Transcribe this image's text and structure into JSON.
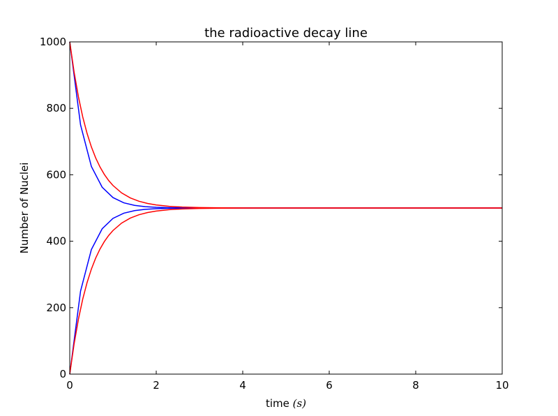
{
  "chart_data": {
    "type": "line",
    "title": "the radioactive decay line",
    "xlabel_prefix": "time ",
    "xlabel_math": "(s)",
    "ylabel": "Number of Nuclei",
    "xlim": [
      0,
      10
    ],
    "ylim": [
      0,
      1000
    ],
    "x_ticks": [
      0,
      2,
      4,
      6,
      8,
      10
    ],
    "y_ticks": [
      0,
      200,
      400,
      600,
      800,
      1000
    ],
    "grid": false,
    "legend": "none",
    "series": [
      {
        "color": "#0000ff",
        "x": [
          0,
          0.25,
          0.5,
          0.75,
          1.0,
          1.25,
          1.5,
          1.75,
          2.0,
          2.25,
          2.5,
          2.75,
          3.0,
          3.25,
          3.5,
          3.75,
          4.0,
          5.0,
          6.0,
          7.0,
          8.0,
          9.0,
          10.0
        ],
        "y": [
          1000,
          750,
          625,
          562.5,
          531.3,
          515.6,
          507.8,
          503.9,
          502.0,
          501.0,
          500.5,
          500.2,
          500.1,
          500.1,
          500,
          500,
          500,
          500,
          500,
          500,
          500,
          500,
          500
        ]
      },
      {
        "color": "#0000ff",
        "x": [
          0,
          0.25,
          0.5,
          0.75,
          1.0,
          1.25,
          1.5,
          1.75,
          2.0,
          2.25,
          2.5,
          2.75,
          3.0,
          3.25,
          3.5,
          3.75,
          4.0,
          5.0,
          6.0,
          7.0,
          8.0,
          9.0,
          10.0
        ],
        "y": [
          0,
          250,
          375,
          437.5,
          468.8,
          484.4,
          492.2,
          496.1,
          498.0,
          499.0,
          499.5,
          499.8,
          499.9,
          499.9,
          500,
          500,
          500,
          500,
          500,
          500,
          500,
          500,
          500
        ]
      },
      {
        "color": "#ff0000",
        "x": [
          0,
          0.1,
          0.2,
          0.3,
          0.4,
          0.5,
          0.6,
          0.7,
          0.8,
          0.9,
          1.0,
          1.2,
          1.4,
          1.6,
          1.8,
          2.0,
          2.3,
          2.6,
          3.0,
          3.5,
          4.0,
          5.0,
          6.0,
          7.0,
          8.0,
          9.0,
          10.0
        ],
        "y": [
          1000,
          909.4,
          835.2,
          774.4,
          724.7,
          684.0,
          650.6,
          623.3,
          601.0,
          582.6,
          567.7,
          545.4,
          530.4,
          520.4,
          513.7,
          509.2,
          505.0,
          502.8,
          501.2,
          500.5,
          500.2,
          500,
          500,
          500,
          500,
          500,
          500
        ]
      },
      {
        "color": "#ff0000",
        "x": [
          0,
          0.1,
          0.2,
          0.3,
          0.4,
          0.5,
          0.6,
          0.7,
          0.8,
          0.9,
          1.0,
          1.2,
          1.4,
          1.6,
          1.8,
          2.0,
          2.3,
          2.6,
          3.0,
          3.5,
          4.0,
          5.0,
          6.0,
          7.0,
          8.0,
          9.0,
          10.0
        ],
        "y": [
          0,
          90.6,
          164.8,
          225.6,
          275.3,
          316.0,
          349.4,
          376.7,
          399.0,
          417.4,
          432.3,
          454.6,
          469.6,
          479.6,
          486.3,
          490.8,
          495.0,
          497.2,
          498.8,
          499.5,
          499.8,
          500,
          500,
          500,
          500,
          500,
          500
        ]
      }
    ]
  }
}
